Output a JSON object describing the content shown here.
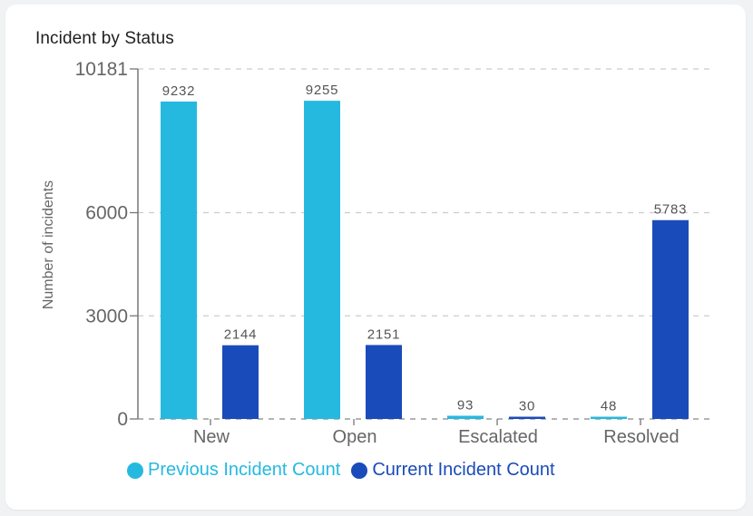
{
  "card": {
    "title": "Incident by Status"
  },
  "colors": {
    "previous": "#25b9e0",
    "current": "#1a4bba",
    "axis": "#777777",
    "grid": "#cccccc",
    "tick_text": "#666666",
    "label_text": "#555555"
  },
  "chart_data": {
    "type": "bar",
    "title": "Incident by Status",
    "xlabel": "",
    "ylabel": "Number of incidents",
    "categories": [
      "New",
      "Open",
      "Escalated",
      "Resolved"
    ],
    "series": [
      {
        "name": "Previous Incident Count",
        "color": "#25b9e0",
        "values": [
          9232,
          9255,
          93,
          48
        ]
      },
      {
        "name": "Current Incident Count",
        "color": "#1a4bba",
        "values": [
          2144,
          2151,
          30,
          5783
        ]
      }
    ],
    "ylim": [
      0,
      10181
    ],
    "yticks": [
      0,
      3000,
      6000,
      10181
    ],
    "grid": "horizontal dashed",
    "legend_position": "bottom",
    "data_labels": true
  },
  "legend": {
    "items": [
      {
        "label": "Previous Incident Count",
        "color": "#25b9e0"
      },
      {
        "label": "Current Incident Count",
        "color": "#1a4bba"
      }
    ]
  }
}
